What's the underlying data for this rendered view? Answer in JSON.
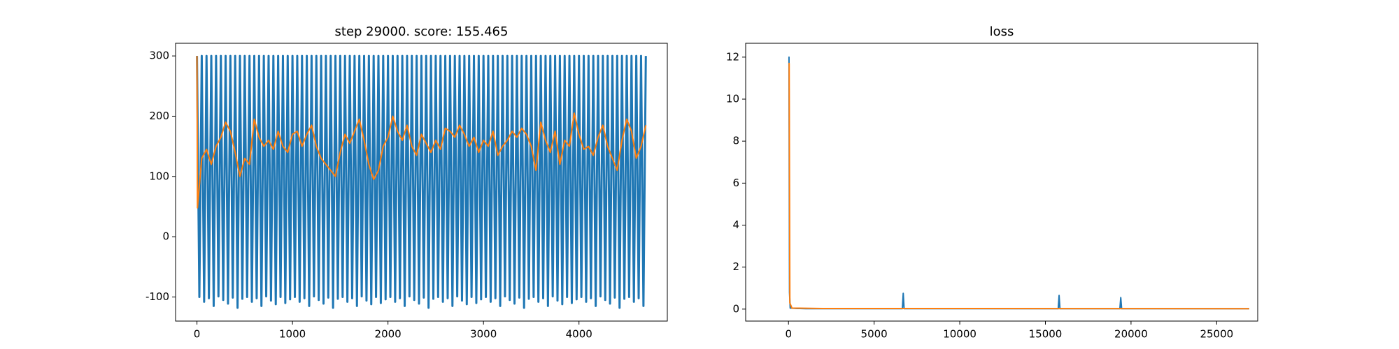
{
  "chart_data": [
    {
      "type": "line",
      "title": "step 29000. score: 155.465",
      "xlim": [
        -224,
        4925
      ],
      "ylim": [
        -140,
        321
      ],
      "xticks": [
        0,
        1000,
        2000,
        3000,
        4000
      ],
      "yticks": [
        -100,
        0,
        100,
        200,
        300
      ],
      "series": [
        {
          "color": "#1f77b4",
          "x": [
            0,
            25,
            50,
            75,
            100,
            125,
            150,
            175,
            200,
            225,
            250,
            275,
            300,
            325,
            350,
            375,
            400,
            425,
            450,
            475,
            500,
            525,
            550,
            575,
            600,
            625,
            650,
            675,
            700,
            725,
            750,
            775,
            800,
            825,
            850,
            875,
            900,
            925,
            950,
            975,
            1000,
            1025,
            1050,
            1075,
            1100,
            1125,
            1150,
            1175,
            1200,
            1225,
            1250,
            1275,
            1300,
            1325,
            1350,
            1375,
            1400,
            1425,
            1450,
            1475,
            1500,
            1525,
            1550,
            1575,
            1600,
            1625,
            1650,
            1675,
            1700,
            1725,
            1750,
            1775,
            1800,
            1825,
            1850,
            1875,
            1900,
            1925,
            1950,
            1975,
            2000,
            2025,
            2050,
            2075,
            2100,
            2125,
            2150,
            2175,
            2200,
            2225,
            2250,
            2275,
            2300,
            2325,
            2350,
            2375,
            2400,
            2425,
            2450,
            2475,
            2500,
            2525,
            2550,
            2575,
            2600,
            2625,
            2650,
            2675,
            2700,
            2725,
            2750,
            2775,
            2800,
            2825,
            2850,
            2875,
            2900,
            2925,
            2950,
            2975,
            3000,
            3025,
            3050,
            3075,
            3100,
            3125,
            3150,
            3175,
            3200,
            3225,
            3250,
            3275,
            3300,
            3325,
            3350,
            3375,
            3400,
            3425,
            3450,
            3475,
            3500,
            3525,
            3550,
            3575,
            3600,
            3625,
            3650,
            3675,
            3700,
            3725,
            3750,
            3775,
            3800,
            3825,
            3850,
            3875,
            3900,
            3925,
            3950,
            3975,
            4000,
            4025,
            4050,
            4075,
            4100,
            4125,
            4150,
            4175,
            4200,
            4225,
            4250,
            4275,
            4300,
            4325,
            4350,
            4375,
            4400,
            4425,
            4450,
            4475,
            4500,
            4525,
            4550,
            4575,
            4600,
            4625,
            4650,
            4675,
            4700
          ],
          "values": [
            300,
            -100,
            300,
            -108,
            300,
            -102,
            300,
            -115,
            300,
            -99,
            300,
            -105,
            300,
            -111,
            300,
            -101,
            300,
            -118,
            300,
            -103,
            300,
            -100,
            300,
            -108,
            300,
            -102,
            300,
            -115,
            300,
            -99,
            300,
            -106,
            300,
            -112,
            300,
            -100,
            300,
            -110,
            300,
            -104,
            300,
            -100,
            300,
            -108,
            300,
            -102,
            300,
            -115,
            300,
            -99,
            300,
            -105,
            300,
            -111,
            300,
            -101,
            300,
            -118,
            300,
            -103,
            300,
            -100,
            300,
            -108,
            300,
            -102,
            300,
            -115,
            300,
            -99,
            300,
            -106,
            300,
            -112,
            300,
            -100,
            300,
            -110,
            300,
            -104,
            300,
            -100,
            300,
            -108,
            300,
            -102,
            300,
            -115,
            300,
            -99,
            300,
            -105,
            300,
            -111,
            300,
            -101,
            300,
            -118,
            300,
            -103,
            300,
            -100,
            300,
            -108,
            300,
            -102,
            300,
            -115,
            300,
            -99,
            300,
            -106,
            300,
            -112,
            300,
            -100,
            300,
            -110,
            300,
            -104,
            300,
            -100,
            300,
            -108,
            300,
            -102,
            300,
            -115,
            300,
            -99,
            300,
            -105,
            300,
            -111,
            300,
            -101,
            300,
            -118,
            300,
            -103,
            300,
            -100,
            300,
            -108,
            300,
            -102,
            300,
            -115,
            300,
            -99,
            300,
            -106,
            300,
            -112,
            300,
            -100,
            300,
            -110,
            300,
            -104,
            300,
            -100,
            300,
            -108,
            300,
            -102,
            300,
            -115,
            300,
            -99,
            300,
            -105,
            300,
            -111,
            300,
            -101,
            300,
            -118,
            300,
            -103,
            300,
            -100,
            300,
            -108,
            300,
            -102,
            300,
            -115,
            300
          ]
        },
        {
          "color": "#ff7f0e",
          "x": [
            0,
            5,
            50,
            100,
            150,
            200,
            250,
            300,
            350,
            400,
            450,
            500,
            550,
            600,
            650,
            700,
            750,
            800,
            850,
            900,
            950,
            1000,
            1050,
            1100,
            1150,
            1200,
            1250,
            1300,
            1350,
            1400,
            1450,
            1500,
            1550,
            1600,
            1650,
            1700,
            1750,
            1800,
            1850,
            1900,
            1950,
            2000,
            2050,
            2100,
            2150,
            2200,
            2250,
            2300,
            2350,
            2400,
            2450,
            2500,
            2550,
            2600,
            2650,
            2700,
            2750,
            2800,
            2850,
            2900,
            2950,
            3000,
            3050,
            3100,
            3150,
            3200,
            3250,
            3300,
            3350,
            3400,
            3450,
            3500,
            3550,
            3600,
            3650,
            3700,
            3750,
            3800,
            3850,
            3900,
            3950,
            4000,
            4050,
            4100,
            4150,
            4200,
            4250,
            4300,
            4350,
            4400,
            4450,
            4500,
            4550,
            4600,
            4650,
            4700
          ],
          "values": [
            300,
            48,
            130,
            145,
            120,
            150,
            165,
            190,
            175,
            140,
            100,
            130,
            120,
            195,
            165,
            150,
            160,
            145,
            175,
            150,
            140,
            170,
            175,
            150,
            170,
            185,
            150,
            130,
            120,
            110,
            100,
            140,
            170,
            155,
            175,
            195,
            160,
            120,
            95,
            110,
            150,
            165,
            200,
            175,
            160,
            185,
            150,
            135,
            170,
            155,
            140,
            160,
            145,
            180,
            175,
            165,
            185,
            170,
            150,
            165,
            140,
            160,
            150,
            175,
            135,
            150,
            160,
            175,
            165,
            180,
            170,
            150,
            110,
            190,
            160,
            140,
            175,
            120,
            160,
            150,
            205,
            170,
            145,
            150,
            135,
            165,
            185,
            150,
            130,
            110,
            160,
            195,
            175,
            130,
            150,
            185
          ]
        }
      ]
    },
    {
      "type": "line",
      "title": "loss",
      "xlim": [
        -2500,
        27396
      ],
      "ylim": [
        -0.57,
        12.66
      ],
      "xticks": [
        0,
        5000,
        10000,
        15000,
        20000,
        25000
      ],
      "yticks": [
        0,
        2,
        4,
        6,
        8,
        10,
        12
      ],
      "series": [
        {
          "color": "#1f77b4",
          "x": [
            0,
            30,
            60,
            100,
            500,
            1000,
            3000,
            6650,
            6700,
            6750,
            10000,
            15750,
            15800,
            15850,
            19350,
            19400,
            19450,
            23000,
            26900
          ],
          "values": [
            12,
            12,
            0.8,
            0.05,
            0.03,
            0.02,
            0.02,
            0.02,
            0.75,
            0.02,
            0.02,
            0.02,
            0.65,
            0.02,
            0.02,
            0.55,
            0.02,
            0.02,
            0.02
          ]
        },
        {
          "color": "#ff7f0e",
          "x": [
            0,
            40,
            80,
            200,
            2000,
            26900
          ],
          "values": [
            11.7,
            11.7,
            0.3,
            0.05,
            0.03,
            0.02
          ]
        }
      ]
    }
  ]
}
